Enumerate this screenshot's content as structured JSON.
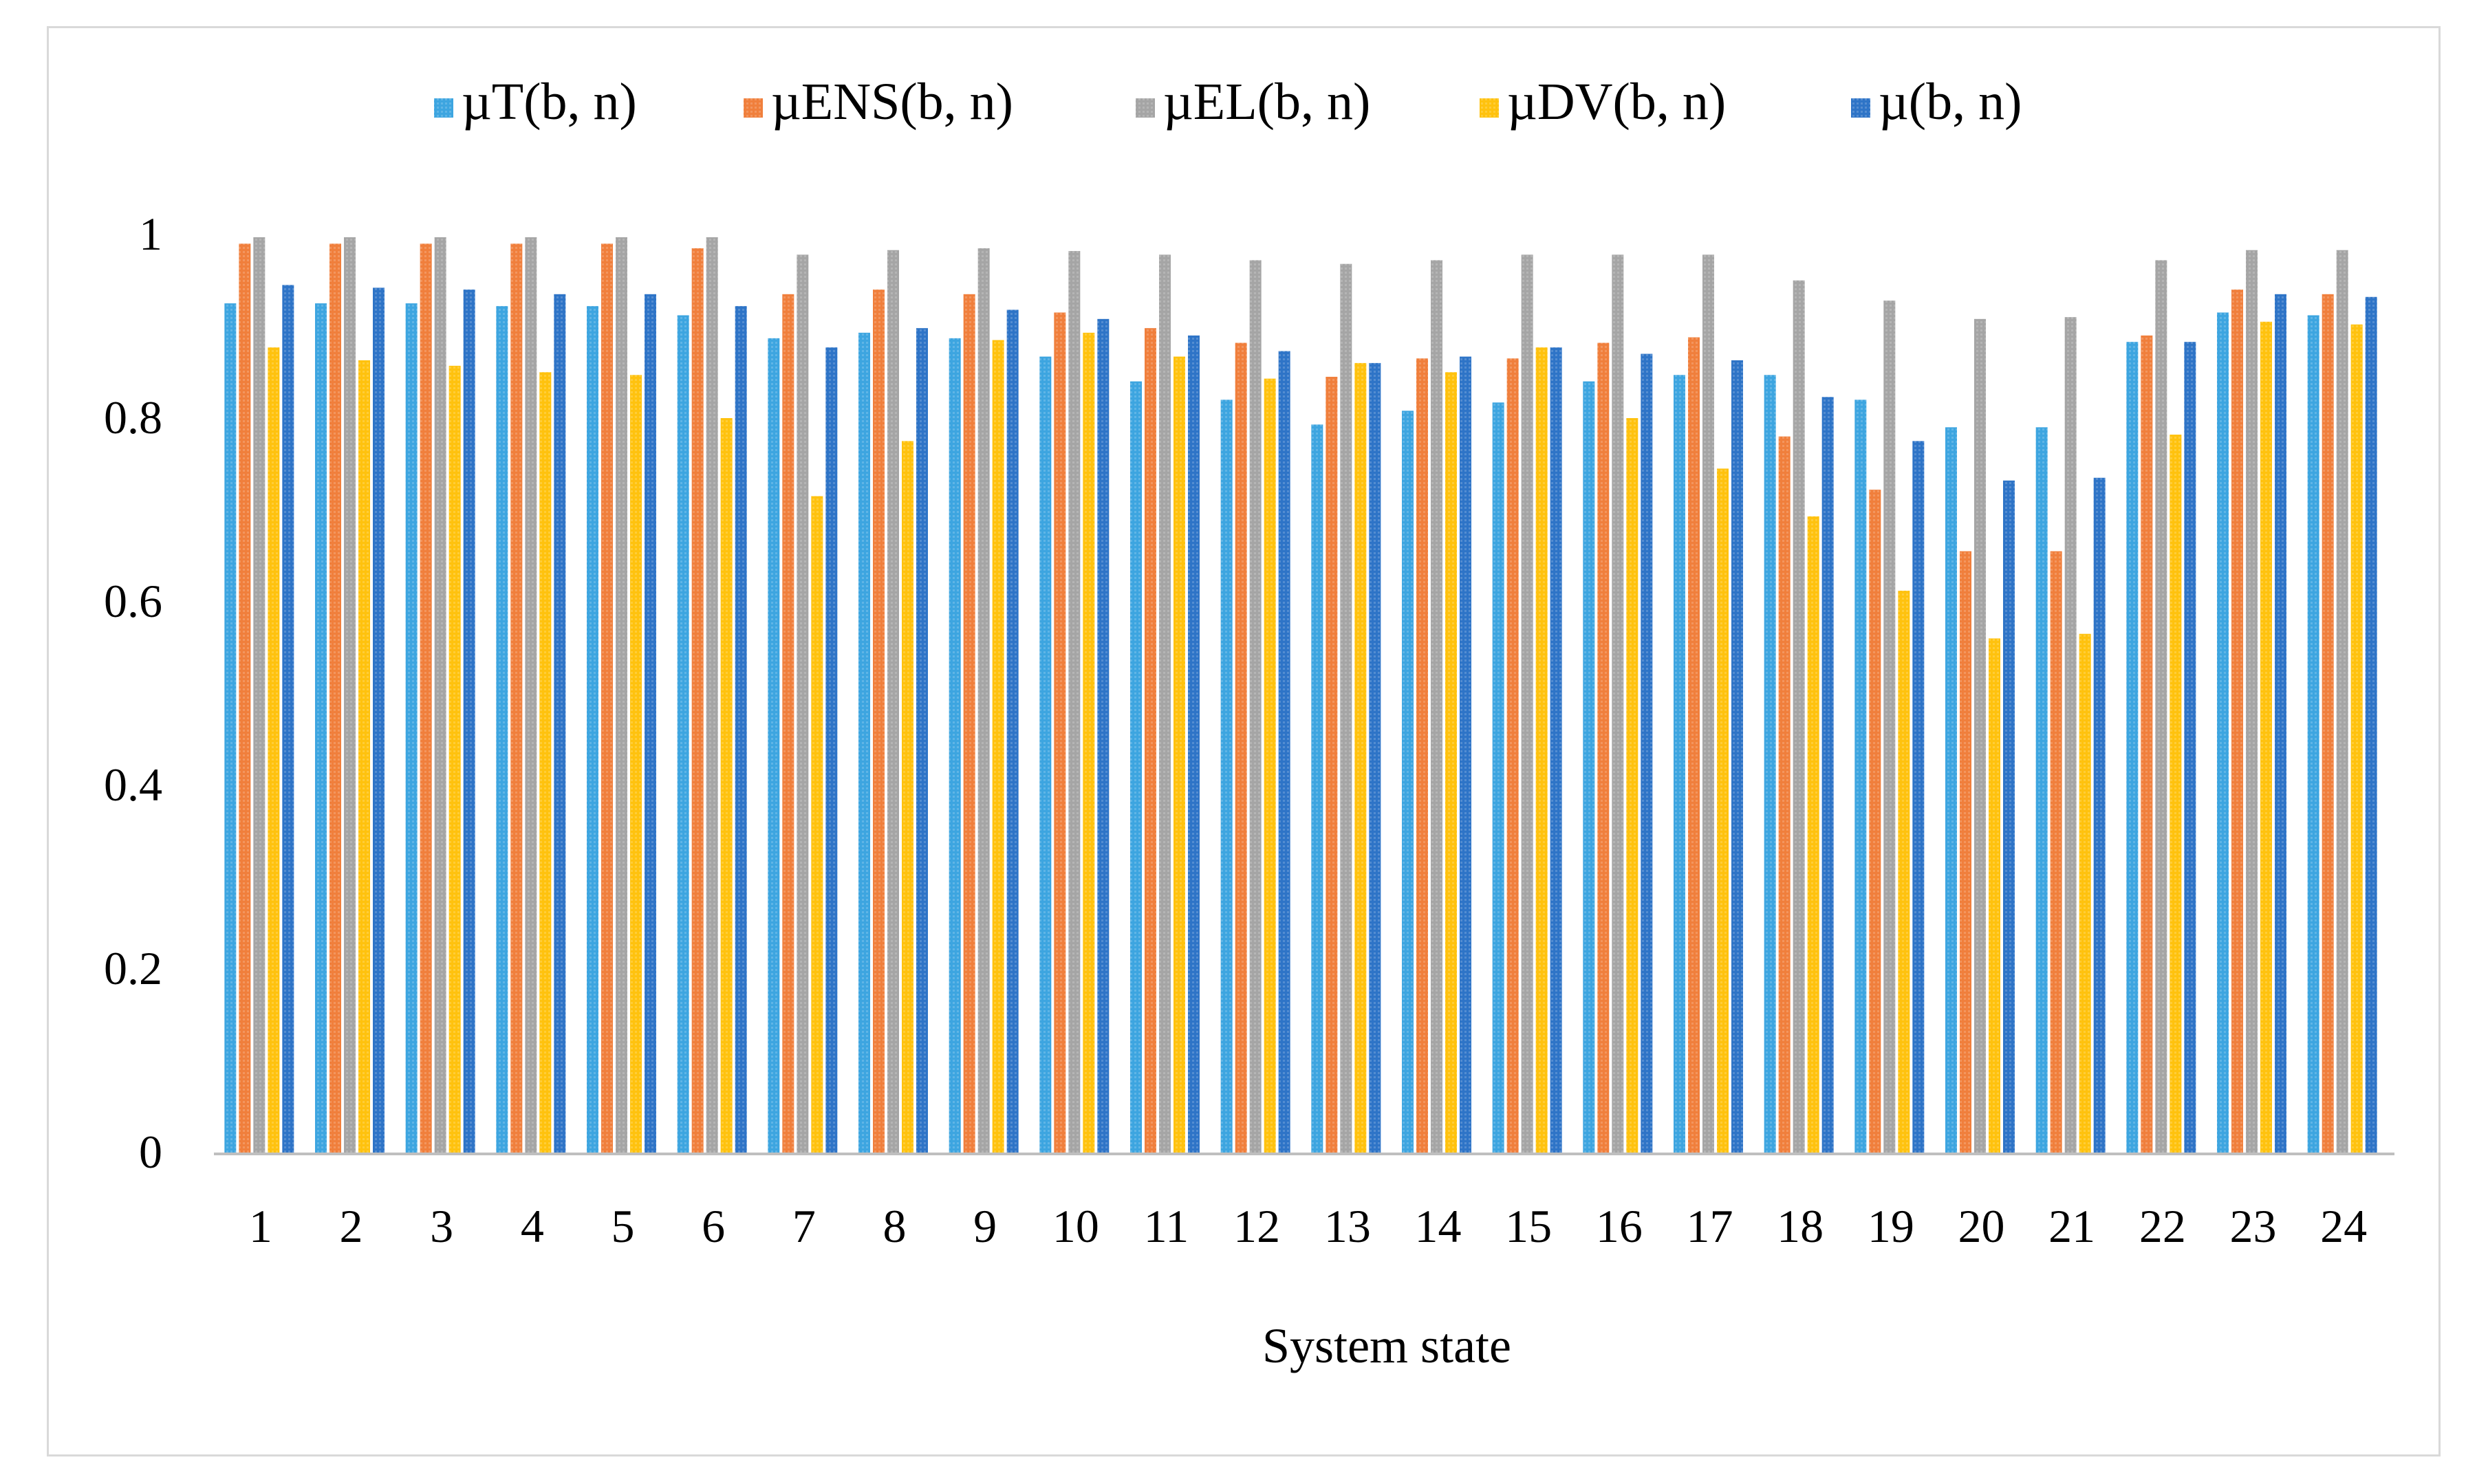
{
  "chart_data": {
    "type": "bar",
    "title": "",
    "xlabel": "System state",
    "ylabel": "",
    "ylim": [
      0,
      1
    ],
    "yticks": [
      "0",
      "0.2",
      "0.4",
      "0.6",
      "0.8",
      "1"
    ],
    "grid": false,
    "legend_position": "top-center",
    "categories": [
      "1",
      "2",
      "3",
      "4",
      "5",
      "6",
      "7",
      "8",
      "9",
      "10",
      "11",
      "12",
      "13",
      "14",
      "15",
      "16",
      "17",
      "18",
      "19",
      "20",
      "21",
      "22",
      "23",
      "24"
    ],
    "series": [
      {
        "name": "µT(b, n)",
        "color": "#3da5e0",
        "values": [
          0.925,
          0.925,
          0.925,
          0.922,
          0.922,
          0.912,
          0.887,
          0.893,
          0.887,
          0.867,
          0.84,
          0.82,
          0.793,
          0.808,
          0.817,
          0.84,
          0.847,
          0.847,
          0.82,
          0.79,
          0.79,
          0.883,
          0.915,
          0.912
        ]
      },
      {
        "name": "µENS(b, n)",
        "color": "#f07f3c",
        "values": [
          0.99,
          0.99,
          0.99,
          0.99,
          0.99,
          0.985,
          0.935,
          0.94,
          0.935,
          0.915,
          0.898,
          0.882,
          0.845,
          0.865,
          0.865,
          0.882,
          0.888,
          0.78,
          0.722,
          0.655,
          0.655,
          0.89,
          0.94,
          0.935
        ]
      },
      {
        "name": "µEL(b, n)",
        "color": "#a5a5a5",
        "values": [
          0.997,
          0.997,
          0.997,
          0.997,
          0.997,
          0.997,
          0.978,
          0.983,
          0.985,
          0.982,
          0.978,
          0.972,
          0.968,
          0.972,
          0.978,
          0.978,
          0.978,
          0.95,
          0.928,
          0.908,
          0.91,
          0.972,
          0.983,
          0.983
        ]
      },
      {
        "name": "µDV(b, n)",
        "color": "#ffc20e",
        "values": [
          0.877,
          0.863,
          0.857,
          0.85,
          0.847,
          0.8,
          0.715,
          0.775,
          0.885,
          0.893,
          0.867,
          0.843,
          0.86,
          0.85,
          0.877,
          0.8,
          0.745,
          0.693,
          0.612,
          0.56,
          0.565,
          0.782,
          0.905,
          0.902
        ]
      },
      {
        "name": "µ(b, n)",
        "color": "#2e74c7",
        "values": [
          0.945,
          0.942,
          0.94,
          0.935,
          0.935,
          0.922,
          0.877,
          0.898,
          0.918,
          0.908,
          0.89,
          0.873,
          0.86,
          0.867,
          0.877,
          0.87,
          0.863,
          0.823,
          0.775,
          0.732,
          0.735,
          0.883,
          0.935,
          0.932
        ]
      }
    ]
  }
}
